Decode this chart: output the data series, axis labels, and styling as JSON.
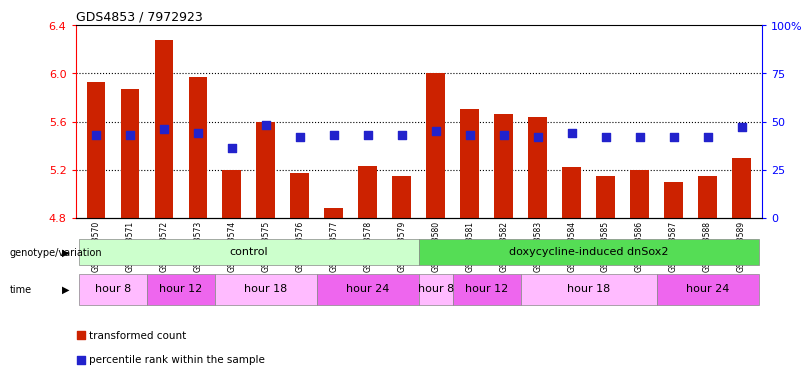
{
  "title": "GDS4853 / 7972923",
  "samples": [
    "GSM1053570",
    "GSM1053571",
    "GSM1053572",
    "GSM1053573",
    "GSM1053574",
    "GSM1053575",
    "GSM1053576",
    "GSM1053577",
    "GSM1053578",
    "GSM1053579",
    "GSM1053580",
    "GSM1053581",
    "GSM1053582",
    "GSM1053583",
    "GSM1053584",
    "GSM1053585",
    "GSM1053586",
    "GSM1053587",
    "GSM1053588",
    "GSM1053589"
  ],
  "transformed_count": [
    5.93,
    5.87,
    6.28,
    5.97,
    5.2,
    5.6,
    5.17,
    4.88,
    5.23,
    5.15,
    6.0,
    5.7,
    5.66,
    5.64,
    5.22,
    5.15,
    5.2,
    5.1,
    5.15,
    5.3
  ],
  "percentile_rank": [
    43,
    43,
    46,
    44,
    36,
    48,
    42,
    43,
    43,
    43,
    45,
    43,
    43,
    42,
    44,
    42,
    42,
    42,
    42,
    47
  ],
  "y_min": 4.8,
  "y_max": 6.4,
  "y_ticks_left": [
    4.8,
    5.2,
    5.6,
    6.0,
    6.4
  ],
  "y_ticks_right": [
    0,
    25,
    50,
    75,
    100
  ],
  "bar_color": "#cc2200",
  "dot_color": "#2222cc",
  "bar_width": 0.55,
  "genotype_groups": [
    {
      "label": "control",
      "start": 0,
      "end": 10,
      "color": "#ccffcc"
    },
    {
      "label": "doxycycline-induced dnSox2",
      "start": 10,
      "end": 20,
      "color": "#55dd55"
    }
  ],
  "time_groups": [
    {
      "label": "hour 8",
      "start": 0,
      "end": 2,
      "color": "#ffbbff"
    },
    {
      "label": "hour 12",
      "start": 2,
      "end": 4,
      "color": "#ee66ee"
    },
    {
      "label": "hour 18",
      "start": 4,
      "end": 7,
      "color": "#ffbbff"
    },
    {
      "label": "hour 24",
      "start": 7,
      "end": 10,
      "color": "#ee66ee"
    },
    {
      "label": "hour 8",
      "start": 10,
      "end": 11,
      "color": "#ffbbff"
    },
    {
      "label": "hour 12",
      "start": 11,
      "end": 13,
      "color": "#ee66ee"
    },
    {
      "label": "hour 18",
      "start": 13,
      "end": 17,
      "color": "#ffbbff"
    },
    {
      "label": "hour 24",
      "start": 17,
      "end": 20,
      "color": "#ee66ee"
    }
  ],
  "legend_items": [
    {
      "label": "transformed count",
      "color": "#cc2200"
    },
    {
      "label": "percentile rank within the sample",
      "color": "#2222cc"
    }
  ],
  "bg_color": "#ffffff"
}
